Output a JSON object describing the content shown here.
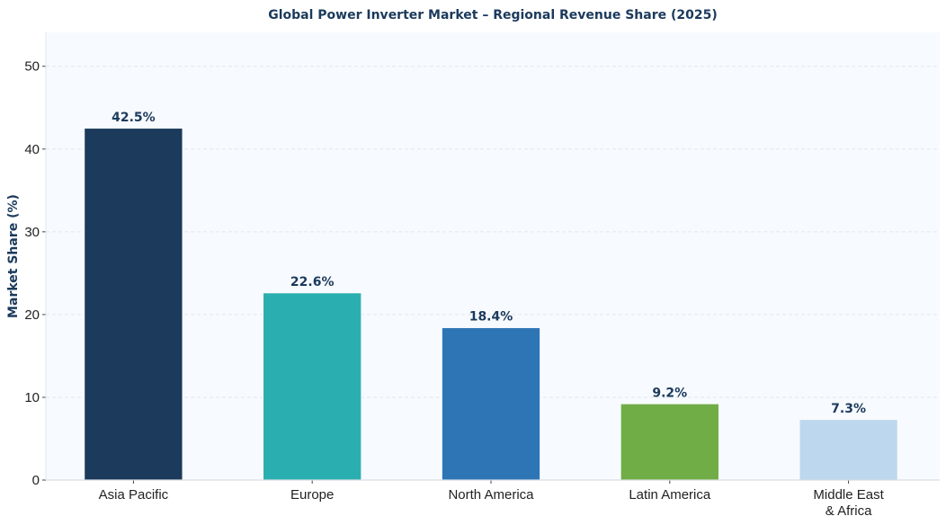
{
  "chart_data": {
    "type": "bar",
    "title": "Global Power Inverter Market – Regional Revenue Share (2025)",
    "xlabel": "",
    "ylabel": "Market Share (%)",
    "ylim": [
      0,
      54.1
    ],
    "yticks": [
      0,
      10,
      20,
      30,
      40,
      50
    ],
    "grid": true,
    "categories": [
      [
        "Asia Pacific"
      ],
      [
        "Europe"
      ],
      [
        "North America"
      ],
      [
        "Latin America"
      ],
      [
        "Middle East",
        "& Africa"
      ]
    ],
    "values": [
      42.5,
      22.6,
      18.4,
      9.2,
      7.3
    ],
    "data_labels": [
      "42.5%",
      "22.6%",
      "18.4%",
      "9.2%",
      "7.3%"
    ],
    "colors": [
      "#1b3a5c",
      "#2aaeb0",
      "#2e75b6",
      "#70ad47",
      "#bdd7ee"
    ],
    "plot_background": "#f7fafe",
    "text_color": "#1b3a5c"
  }
}
